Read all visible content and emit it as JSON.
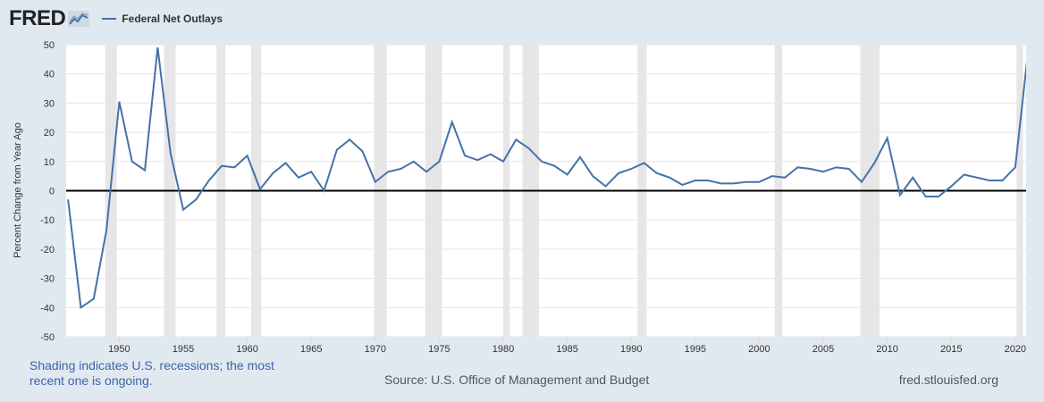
{
  "header": {
    "logo_text": "FRED",
    "legend_label": "Federal Net Outlays"
  },
  "footer": {
    "shading_note": "Shading indicates U.S. recessions; the most recent one is ongoing.",
    "source": "Source: U.S. Office of Management and Budget",
    "site": "fred.stlouisfed.org"
  },
  "colors": {
    "series": "#4572a7",
    "recession": "#e6e6e6",
    "background": "#e1e9f0",
    "zero_line": "#000000"
  },
  "chart_data": {
    "type": "line",
    "ylabel": "Percent Change from Year Ago",
    "xlim": [
      1945.85,
      2020.85
    ],
    "ylim": [
      -50,
      50
    ],
    "y_ticks": [
      50,
      40,
      30,
      20,
      10,
      0,
      -10,
      -20,
      -30,
      -40,
      -50
    ],
    "x_ticks": [
      1950,
      1955,
      1960,
      1965,
      1970,
      1975,
      1980,
      1985,
      1990,
      1995,
      2000,
      2005,
      2010,
      2015,
      2020
    ],
    "grid": "horizontal",
    "legend": "top-left",
    "series": [
      {
        "name": "Federal Net Outlays",
        "x": [
          1946,
          1947,
          1948,
          1949,
          1950,
          1951,
          1952,
          1953,
          1954,
          1955,
          1956,
          1957,
          1958,
          1959,
          1960,
          1961,
          1962,
          1963,
          1964,
          1965,
          1966,
          1967,
          1968,
          1969,
          1970,
          1971,
          1972,
          1973,
          1974,
          1975,
          1976,
          1977,
          1978,
          1979,
          1980,
          1981,
          1982,
          1983,
          1984,
          1985,
          1986,
          1987,
          1988,
          1989,
          1990,
          1991,
          1992,
          1993,
          1994,
          1995,
          1996,
          1997,
          1998,
          1999,
          2000,
          2001,
          2002,
          2003,
          2004,
          2005,
          2006,
          2007,
          2008,
          2009,
          2010,
          2011,
          2012,
          2013,
          2014,
          2015,
          2016,
          2017,
          2018,
          2019,
          2020
        ],
        "values": [
          -3,
          -40,
          -37,
          -13.5,
          30.5,
          10,
          7,
          49,
          13,
          -6.5,
          -3,
          3.5,
          8.5,
          8,
          12,
          0.5,
          6,
          9.5,
          4.5,
          6.5,
          0,
          14,
          17.5,
          13.5,
          3,
          6.5,
          7.5,
          10,
          6.5,
          10,
          23.5,
          12,
          10.5,
          12.5,
          10,
          17.5,
          14.5,
          10,
          8.5,
          5.5,
          11.5,
          5,
          1.5,
          6,
          7.5,
          9.5,
          6,
          4.5,
          2,
          3.5,
          3.5,
          2.5,
          2.5,
          3,
          3,
          5,
          4.5,
          8,
          7.5,
          6.5,
          8,
          7.5,
          3,
          9.5,
          18,
          -1.5,
          4.5,
          -2,
          -2,
          1.5,
          5.5,
          4.5,
          3.5,
          3.5,
          8
        ]
      }
    ],
    "final_point": {
      "x": 2021,
      "y": 47.5
    },
    "recessions": [
      [
        1948.9,
        1949.8
      ],
      [
        1953.5,
        1954.4
      ],
      [
        1957.6,
        1958.3
      ],
      [
        1960.3,
        1961.1
      ],
      [
        1969.9,
        1970.9
      ],
      [
        1973.9,
        1975.2
      ],
      [
        1980.0,
        1980.5
      ],
      [
        1981.5,
        1982.8
      ],
      [
        1990.5,
        1991.2
      ],
      [
        2001.2,
        2001.8
      ],
      [
        2007.9,
        2009.4
      ],
      [
        2020.1,
        2020.6
      ]
    ]
  }
}
